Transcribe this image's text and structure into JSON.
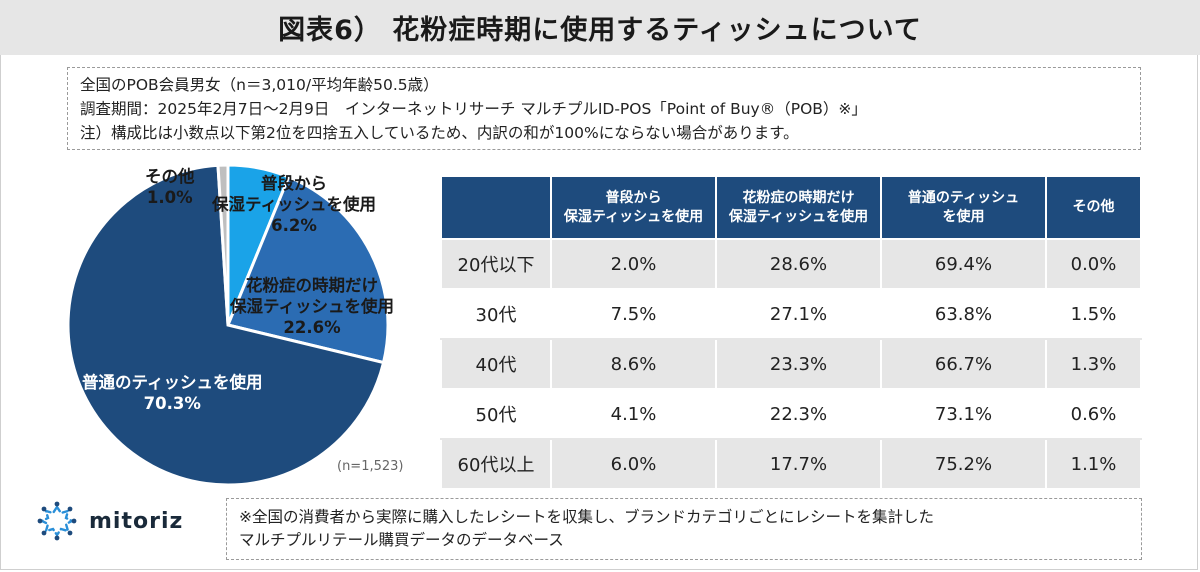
{
  "title": "図表6） 花粉症時期に使用するティッシュについて",
  "notes": [
    "全国のPOB会員男女（n＝3,010/平均年齢50.5歳）",
    "調査期間：2025年2月7日～2月9日　インターネットリサーチ マルチプルID-POS「Point of Buy®（POB）※」",
    "注）構成比は小数点以下第2位を四捨五入しているため、内訳の和が100%にならない場合があります。"
  ],
  "chart_data": [
    {
      "type": "pie",
      "sample_label": "(n=1,523)",
      "slices": [
        {
          "name": "普段から保湿ティッシュを使用",
          "name_lines": [
            "普段から",
            "保湿ティッシュを使用"
          ],
          "value": 6.2,
          "label": "6.2%",
          "color": "#1aa3e8"
        },
        {
          "name": "花粉症の時期だけ保湿ティッシュを使用",
          "name_lines": [
            "花粉症の時期だけ",
            "保湿ティッシュを使用"
          ],
          "value": 22.6,
          "label": "22.6%",
          "color": "#2b6cb3"
        },
        {
          "name": "普通のティッシュを使用",
          "name_lines": [
            "普通のティッシュを使用"
          ],
          "value": 70.3,
          "label": "70.3%",
          "color": "#1e4b7d"
        },
        {
          "name": "その他",
          "name_lines": [
            "その他"
          ],
          "value": 1.0,
          "label": "1.0%",
          "color": "#bfbfbf"
        }
      ]
    },
    {
      "type": "table",
      "columns": [
        "",
        "普段から\n保湿ティッシュを使用",
        "花粉症の時期だけ\n保湿ティッシュを使用",
        "普通のティッシュ\nを使用",
        "その他"
      ],
      "rows": [
        {
          "label": "20代以下",
          "values": [
            "2.0%",
            "28.6%",
            "69.4%",
            "0.0%"
          ]
        },
        {
          "label": "30代",
          "values": [
            "7.5%",
            "27.1%",
            "63.8%",
            "1.5%"
          ]
        },
        {
          "label": "40代",
          "values": [
            "8.6%",
            "23.3%",
            "66.7%",
            "1.3%"
          ]
        },
        {
          "label": "50代",
          "values": [
            "4.1%",
            "22.3%",
            "73.1%",
            "0.6%"
          ]
        },
        {
          "label": "60代以上",
          "values": [
            "6.0%",
            "17.7%",
            "75.2%",
            "1.1%"
          ]
        }
      ]
    }
  ],
  "logo_text": "mitoriz",
  "footer_note": [
    "※全国の消費者から実際に購入したレシートを収集し、ブランドカテゴリごとにレシートを集計した",
    "マルチプルリテール購買データのデータベース"
  ]
}
